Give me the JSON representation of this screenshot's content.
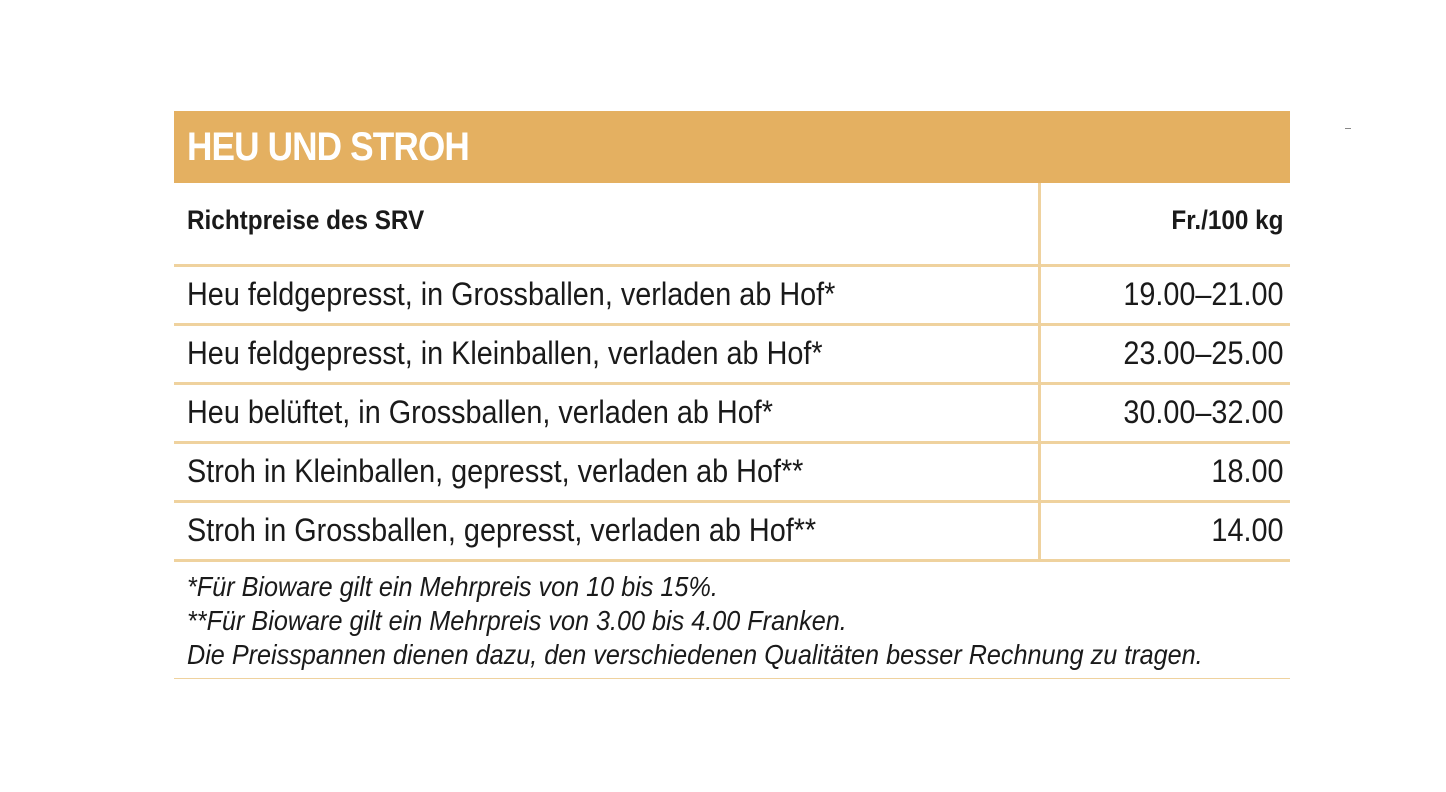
{
  "title": "HEU UND STROH",
  "table": {
    "header": {
      "description": "Richtpreise des SRV",
      "price": "Fr./100 kg"
    },
    "rows": [
      {
        "description": "Heu feldgepresst, in Grossballen, verladen ab Hof*",
        "price": "19.00–21.00"
      },
      {
        "description": "Heu feldgepresst, in Kleinballen, verladen ab Hof*",
        "price": "23.00–25.00"
      },
      {
        "description": "Heu belüftet, in Grossballen, verladen ab Hof*",
        "price": "30.00–32.00"
      },
      {
        "description": "Stroh in Kleinballen, gepresst, verladen ab Hof**",
        "price": "18.00"
      },
      {
        "description": "Stroh in Grossballen, gepresst, verladen ab Hof**",
        "price": "14.00"
      }
    ]
  },
  "footnotes": [
    "*Für Bioware gilt ein Mehrpreis von 10 bis 15%.",
    "**Für Bioware gilt ein Mehrpreis von 3.00 bis 4.00 Franken.",
    "Die Preisspannen dienen dazu, den verschiedenen Qualitäten besser Rechnung zu tragen."
  ],
  "colors": {
    "title_background": "#e4b061",
    "title_text": "#ffffff",
    "rule": "#efd29e"
  }
}
